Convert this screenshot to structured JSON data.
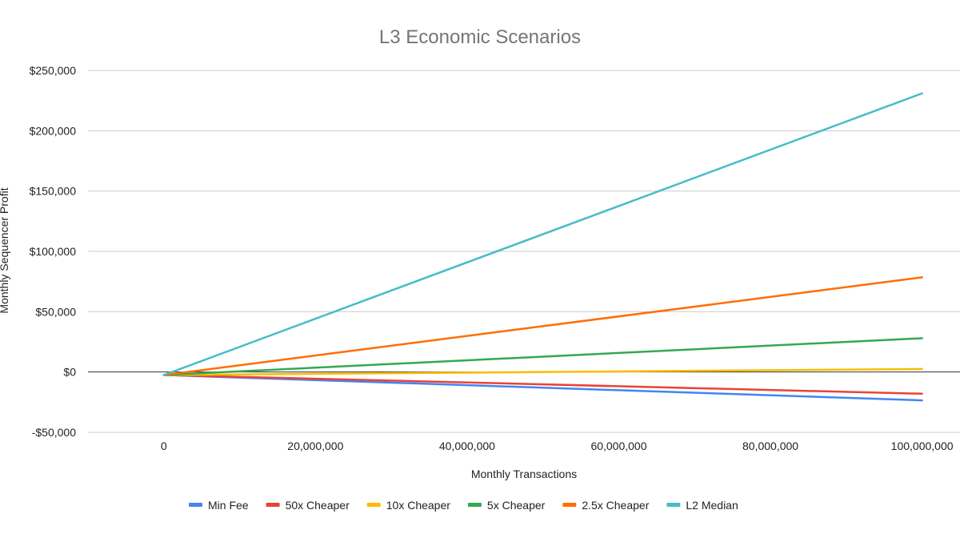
{
  "chart_data": {
    "type": "line",
    "title": "L3 Economic Scenarios",
    "xlabel": "Monthly Transactions",
    "ylabel": "Monthly Sequencer Profit",
    "x": [
      0,
      100000000
    ],
    "xlim": [
      -10000000,
      105000000
    ],
    "ylim": [
      -50000,
      250000
    ],
    "x_ticks": [
      0,
      20000000,
      40000000,
      60000000,
      80000000,
      100000000
    ],
    "x_tick_labels": [
      "0",
      "20,000,000",
      "40,000,000",
      "60,000,000",
      "80,000,000",
      "100,000,000"
    ],
    "y_ticks": [
      -50000,
      0,
      50000,
      100000,
      150000,
      200000,
      250000
    ],
    "y_tick_labels": [
      "-$50,000",
      "$0",
      "$50,000",
      "$100,000",
      "$150,000",
      "$200,000",
      "$250,000"
    ],
    "grid": true,
    "legend_position": "bottom",
    "series": [
      {
        "name": "Min Fee",
        "color": "#4285f4",
        "values": [
          -2500,
          -23500
        ]
      },
      {
        "name": "50x Cheaper",
        "color": "#ea4335",
        "values": [
          -2500,
          -18000
        ]
      },
      {
        "name": "10x Cheaper",
        "color": "#fbbc04",
        "values": [
          -2500,
          2500
        ]
      },
      {
        "name": "5x Cheaper",
        "color": "#34a853",
        "values": [
          -2500,
          28000
        ]
      },
      {
        "name": "2.5x Cheaper",
        "color": "#ff6d01",
        "values": [
          -2500,
          78500
        ]
      },
      {
        "name": "L2 Median",
        "color": "#46bdc6",
        "values": [
          -2500,
          231000
        ]
      }
    ]
  }
}
